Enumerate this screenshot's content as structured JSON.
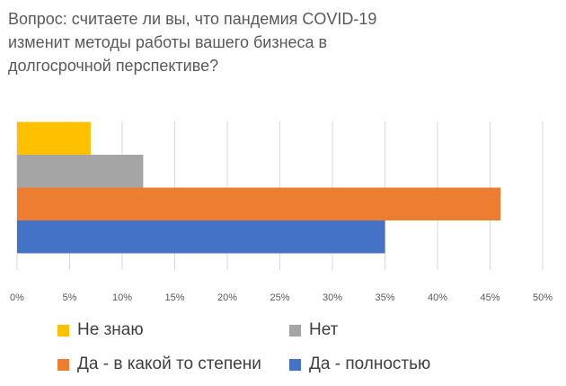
{
  "chart_data": {
    "type": "bar",
    "orientation": "horizontal",
    "title": "Вопрос: считаете ли вы, что пандемия COVID-19 изменит методы работы вашего бизнеса в долгосрочной перспективе?",
    "xlabel": "",
    "ylabel": "",
    "xlim": [
      0,
      50
    ],
    "x_ticks": [
      "0%",
      "5%",
      "10%",
      "15%",
      "20%",
      "25%",
      "30%",
      "35%",
      "40%",
      "45%",
      "50%"
    ],
    "grid": true,
    "legend_position": "bottom",
    "series": [
      {
        "name": "Не знаю",
        "value": 7,
        "color": "#FFC000"
      },
      {
        "name": "Нет",
        "value": 12,
        "color": "#A5A5A5"
      },
      {
        "name": "Да - в какой то степени",
        "value": 46,
        "color": "#ED7D31"
      },
      {
        "name": "Да - полностью",
        "value": 35,
        "color": "#4472C4"
      }
    ]
  }
}
